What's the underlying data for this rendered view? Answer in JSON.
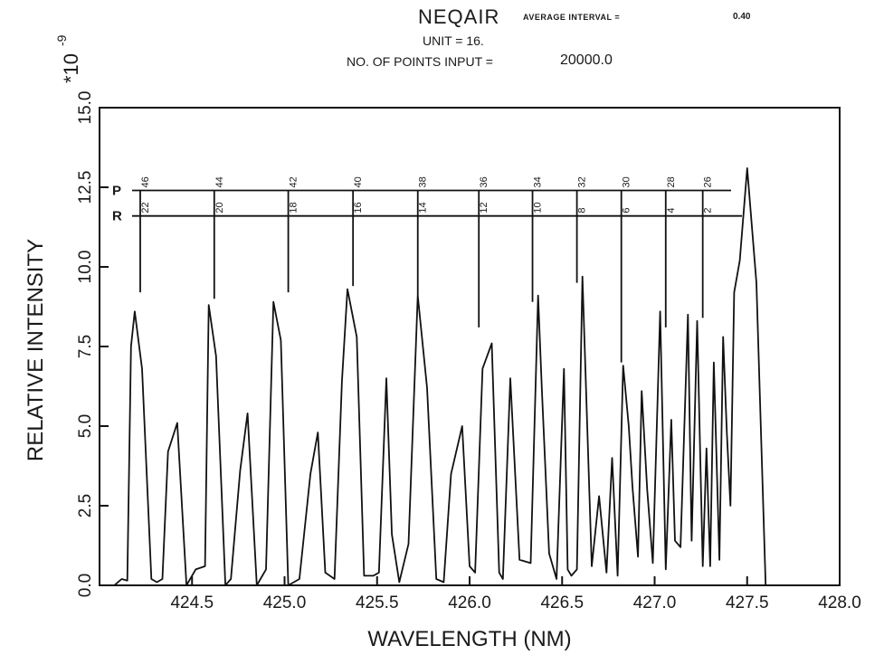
{
  "header": {
    "title": "NEQAIR",
    "avg_interval_label": "AVERAGE INTERVAL =",
    "avg_interval_value": "0.40",
    "unit_text": "UNIT =  16.",
    "points_label": "NO. OF POINTS INPUT =",
    "points_value": "20000.0"
  },
  "chart_data": {
    "type": "line",
    "title": "NEQAIR",
    "xlabel": "WAVELENGTH (NM)",
    "ylabel": "RELATIVE INTENSITY",
    "y_multiplier_label": "*10",
    "y_multiplier_exponent": "-9",
    "xlim": [
      424.0,
      428.0
    ],
    "ylim": [
      0.0,
      15.0
    ],
    "x_ticks": [
      424.5,
      425.0,
      425.5,
      426.0,
      426.5,
      427.0,
      427.5,
      428.0
    ],
    "x_tick_labels": [
      "424.5",
      "425.0",
      "425.5",
      "426.0",
      "426.5",
      "427.0",
      "427.5",
      "428.0"
    ],
    "y_ticks": [
      0.0,
      2.5,
      5.0,
      7.5,
      10.0,
      12.5,
      15.0
    ],
    "y_tick_labels": [
      "0.0",
      "2.5",
      "5.0",
      "7.5",
      "10.0",
      "12.5",
      "15.0"
    ],
    "grid": false,
    "series": [
      {
        "x": [
          424.08,
          424.12,
          424.15,
          424.17,
          424.19,
          424.23,
          424.28,
          424.31,
          424.34,
          424.37,
          424.42,
          424.47,
          424.52,
          424.57,
          424.59,
          424.63,
          424.68,
          424.71,
          424.76,
          424.8,
          424.85,
          424.9,
          424.94,
          424.98,
          425.02,
          425.08,
          425.14,
          425.18,
          425.22,
          425.27,
          425.31,
          425.34,
          425.39,
          425.43,
          425.48,
          425.51,
          425.55,
          425.58,
          425.62,
          425.67,
          425.72,
          425.77,
          425.82,
          425.86,
          425.9,
          425.96,
          426.0,
          426.03,
          426.07,
          426.12,
          426.16,
          426.18,
          426.22,
          426.27,
          426.33,
          426.37,
          426.39,
          426.43,
          426.47,
          426.51,
          426.53,
          426.55,
          426.58,
          426.61,
          426.66,
          426.7,
          426.74,
          426.77,
          426.8,
          426.83,
          426.86,
          426.88,
          426.91,
          426.93,
          426.96,
          426.99,
          427.03,
          427.06,
          427.09,
          427.11,
          427.14,
          427.18,
          427.2,
          427.23,
          427.26,
          427.28,
          427.3,
          427.32,
          427.35,
          427.37,
          427.39,
          427.41,
          427.43,
          427.46,
          427.5,
          427.55,
          427.6,
          427.65,
          427.7,
          427.73,
          427.76,
          427.79,
          427.82,
          427.86,
          427.9,
          427.93,
          427.96
        ],
        "values": [
          0.0,
          0.2,
          0.15,
          7.5,
          8.6,
          6.8,
          0.2,
          0.1,
          0.2,
          4.2,
          5.1,
          0.0,
          0.5,
          0.6,
          8.8,
          7.2,
          0.0,
          0.2,
          3.6,
          5.4,
          0.0,
          0.5,
          8.9,
          7.7,
          0.0,
          0.2,
          3.5,
          4.8,
          0.4,
          0.2,
          6.4,
          9.3,
          7.8,
          0.3,
          0.3,
          0.4,
          6.5,
          1.6,
          0.1,
          1.3,
          9.1,
          6.2,
          0.2,
          0.1,
          3.5,
          5.0,
          0.6,
          0.4,
          6.8,
          7.6,
          0.4,
          0.2,
          6.5,
          0.8,
          0.7,
          9.1,
          6.2,
          1.0,
          0.2,
          6.8,
          0.5,
          0.3,
          0.5,
          9.7,
          0.6,
          2.8,
          0.4,
          4.0,
          0.3,
          6.9,
          5.0,
          3.1,
          0.9,
          6.1,
          3.0,
          0.7,
          8.6,
          0.5,
          5.2,
          1.4,
          1.2,
          8.5,
          1.4,
          8.3,
          0.6,
          4.3,
          0.6,
          7.0,
          0.8,
          7.8,
          4.8,
          2.5,
          9.2,
          10.2,
          13.1,
          9.5,
          0.0,
          0.0,
          0.0,
          0.0,
          0.0,
          0.0,
          0.0,
          0.0,
          0.0,
          0.0,
          0.0
        ]
      }
    ],
    "line_markers": {
      "p_label": "P",
      "r_label": "R",
      "p_level": 12.4,
      "r_level": 11.6,
      "markers": [
        {
          "x": 424.22,
          "p": "46",
          "r": "22",
          "bottom": 9.2
        },
        {
          "x": 424.62,
          "p": "44",
          "r": "20",
          "bottom": 9.0
        },
        {
          "x": 425.02,
          "p": "42",
          "r": "18",
          "bottom": 9.2
        },
        {
          "x": 425.37,
          "p": "40",
          "r": "16",
          "bottom": 9.4
        },
        {
          "x": 425.72,
          "p": "38",
          "r": "14",
          "bottom": 9.1
        },
        {
          "x": 426.05,
          "p": "36",
          "r": "12",
          "bottom": 8.1
        },
        {
          "x": 426.34,
          "p": "34",
          "r": "10",
          "bottom": 8.9
        },
        {
          "x": 426.58,
          "p": "32",
          "r": "8",
          "bottom": 9.5
        },
        {
          "x": 426.82,
          "p": "30",
          "r": "6",
          "bottom": 7.0
        },
        {
          "x": 427.06,
          "p": "28",
          "r": "4",
          "bottom": 8.1
        },
        {
          "x": 427.26,
          "p": "26",
          "r": "2",
          "bottom": 8.4
        }
      ]
    }
  }
}
